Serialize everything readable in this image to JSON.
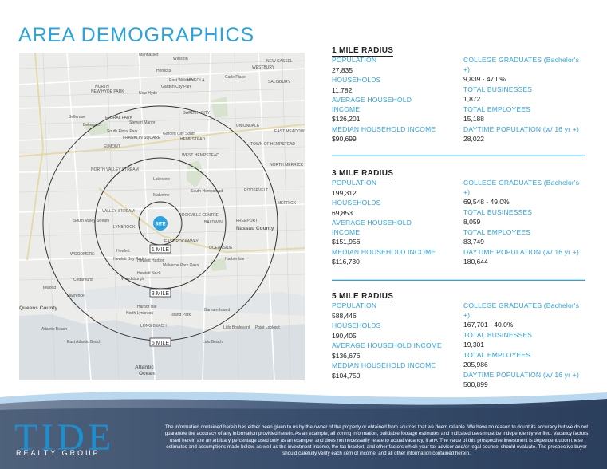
{
  "page": {
    "title": "AREA DEMOGRAPHICS"
  },
  "map": {
    "site_label": "SITE",
    "ring_labels": [
      "1 MILE",
      "3 MILE",
      "5 MILE"
    ],
    "places": [
      "Manhasset Hills",
      "Williston Park",
      "Herricks",
      "East Williston",
      "NEW CASSEL",
      "WESTBURY",
      "Carle Place",
      "NORTH NEW HYDE PARK",
      "New Hyde Park",
      "Garden City Park",
      "MINEOLA",
      "SALISBURY",
      "Bellerose",
      "Bellerose Terrace",
      "Stewart Manor",
      "South Floral Park",
      "FLORAL PARK",
      "GARDEN CITY",
      "UNIONDALE",
      "EAST MEADOW",
      "FRANKLIN SQUARE",
      "Garden City South",
      "HEMPSTEAD",
      "TOWN OF HEMPSTEAD",
      "ELMONT",
      "WEST HEMPSTEAD",
      "NORTH MERRICK",
      "NORTH VALLEY STREAM",
      "Lakeview",
      "Malverne",
      "South Hempstead",
      "ROOSEVELT",
      "MERRICK",
      "VALLEY STREAM",
      "ROCKVILLE CENTRE",
      "South Valley Stream",
      "LYNBROOK",
      "BALDWIN",
      "FREEPORT",
      "Nassau County",
      "EAST ROCKAWAY",
      "WOODMERE",
      "Hewlett",
      "OCEANSIDE",
      "Harbor Isle",
      "Hewlett Bay Park",
      "Hewlett Harbor",
      "Hewlett Neck",
      "Malverne Park Oaks",
      "Woodsburgh",
      "Cedarhurst",
      "Inwood",
      "Lawrence",
      "Queens County",
      "Island Park",
      "Barnum Island",
      "North Lynbrook",
      "LONG BEACH",
      "Atlantic Beach",
      "East Atlantic Beach",
      "Lido Beach",
      "Point Lookout",
      "Atlantic Ocean"
    ]
  },
  "radii": [
    {
      "title": "1 MILE RADIUS",
      "left": [
        {
          "label": "POPULATION",
          "value": "27,835"
        },
        {
          "label": "HOUSEHOLDS",
          "value": "11,782"
        },
        {
          "label": "AVERAGE HOUSEHOLD INCOME",
          "value": "$126,201"
        },
        {
          "label": "MEDIAN HOUSEHOLD INCOME",
          "value": "$90,699"
        }
      ],
      "right": [
        {
          "label": "COLLEGE GRADUATES",
          "sub": "(Bachelor's +)",
          "value": "9,839 - 47.0%"
        },
        {
          "label": "TOTAL BUSINESSES",
          "sub": "",
          "value": "1,872"
        },
        {
          "label": "TOTAL EMPLOYEES",
          "sub": "",
          "value": "15,188"
        },
        {
          "label": "DAYTIME POPULATION",
          "sub": "(w/ 16 yr +)",
          "value": "28,022"
        }
      ]
    },
    {
      "title": "3 MILE RADIUS",
      "left": [
        {
          "label": "POPULATION",
          "value": "199,312"
        },
        {
          "label": "HOUSEHOLDS",
          "value": "69,853"
        },
        {
          "label": "AVERAGE HOUSEHOLD INCOME",
          "value": "$151,956"
        },
        {
          "label": "MEDIAN HOUSEHOLD INCOME",
          "value": "$116,730"
        }
      ],
      "right": [
        {
          "label": "COLLEGE GRADUATES",
          "sub": "(Bachelor's +)",
          "value": "69,548 - 49.0%"
        },
        {
          "label": "TOTAL BUSINESSES",
          "sub": "",
          "value": "8,059"
        },
        {
          "label": "TOTAL EMPLOYEES",
          "sub": "",
          "value": "83,749"
        },
        {
          "label": "DAYTIME POPULATION",
          "sub": "(w/ 16 yr +)",
          "value": "180,644"
        }
      ]
    },
    {
      "title": "5 MILE RADIUS",
      "left": [
        {
          "label": "POPULATION",
          "value": "588,446"
        },
        {
          "label": "HOUSEHOLDS",
          "value": "190,405"
        },
        {
          "label": "AVERAGE HOUSEHOLD INCOME",
          "value": "$136,676"
        },
        {
          "label": "MEDIAN HOUSEHOLD INCOME",
          "value": "$104,750"
        }
      ],
      "right": [
        {
          "label": "COLLEGE GRADUATES",
          "sub": "(Bachelor's +)",
          "value": "167,701 - 40.0%"
        },
        {
          "label": "TOTAL BUSINESSES",
          "sub": "",
          "value": "19,301"
        },
        {
          "label": "TOTAL EMPLOYEES",
          "sub": "",
          "value": "205,986"
        },
        {
          "label": "DAYTIME POPULATION",
          "sub": "(w/ 16 yr +)",
          "value": "500,899"
        }
      ]
    }
  ],
  "footer": {
    "logo_main": "TIDE",
    "logo_sub": "REALTY GROUP",
    "disclaimer": "The information contained herein has either been given to us by the owner of the property or obtained from sources that we deem reliable. We have no reason to doubt its accuracy but we do not guarantee the accuracy of any information provided herein. As an example, all zoning information, buildable footage estimates and indicated uses must be independently verified. Vacancy factors used herein are an arbitrary percentage used only as an example, and does not necessarily relate to actual vacancy, if any. The value of this prospective investment is dependent upon these estimates and assumptions made below, as well as the investment income, the tax bracket, and other factors which your tax advisor and/or legal counsel should evaluate. The prospective buyer should carefully verify each item of income, and all other information contained herein."
  },
  "colors": {
    "accent": "#2aa3e0",
    "text": "#222222",
    "footer_dark": "#2b3f5c",
    "map_bg": "#ecedea"
  }
}
